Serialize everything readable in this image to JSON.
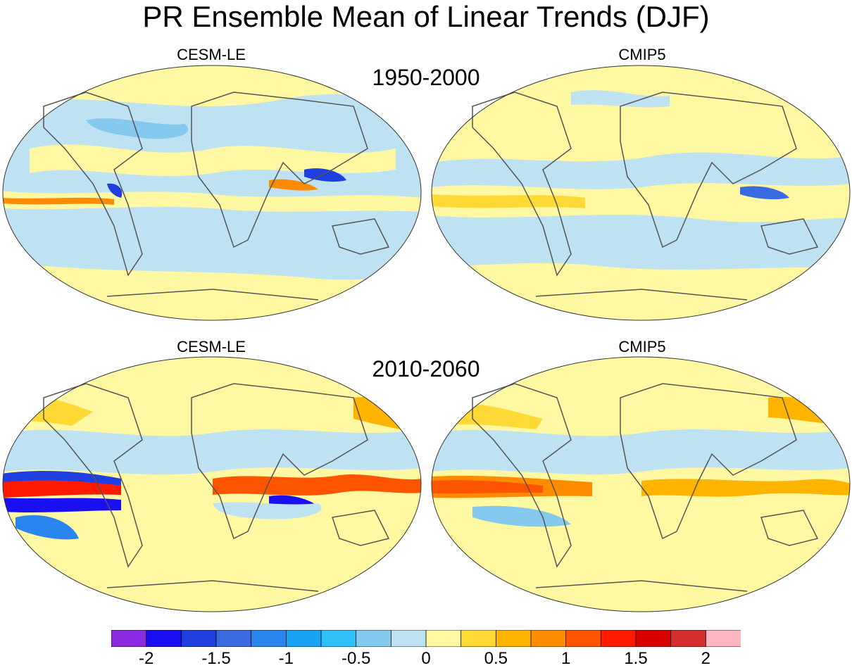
{
  "title": "PR Ensemble Mean of Linear Trends (DJF)",
  "periods": [
    "1950-2000",
    "2010-2060"
  ],
  "panels": [
    {
      "model": "CESM-LE",
      "period": "1950-2000"
    },
    {
      "model": "CMIP5",
      "period": "1950-2000"
    },
    {
      "model": "CESM-LE",
      "period": "2010-2060"
    },
    {
      "model": "CMIP5",
      "period": "2010-2060"
    }
  ],
  "colorbar": {
    "labels": [
      "-2",
      "-1.5",
      "-1",
      "-0.5",
      "0",
      "0.5",
      "1",
      "1.5",
      "2"
    ],
    "colors": [
      "#8a2be2",
      "#1a0ff0",
      "#1f3fe0",
      "#3a6ae0",
      "#2a85f0",
      "#18a3f5",
      "#2fc0f8",
      "#86c9ef",
      "#bfe2f2",
      "#fff8a3",
      "#ffd935",
      "#ffb400",
      "#ff8c00",
      "#ff5500",
      "#ff1a00",
      "#d90000",
      "#d32f2f",
      "#ffb6c1"
    ]
  },
  "icons": {
    "map": "world-map-icon"
  }
}
